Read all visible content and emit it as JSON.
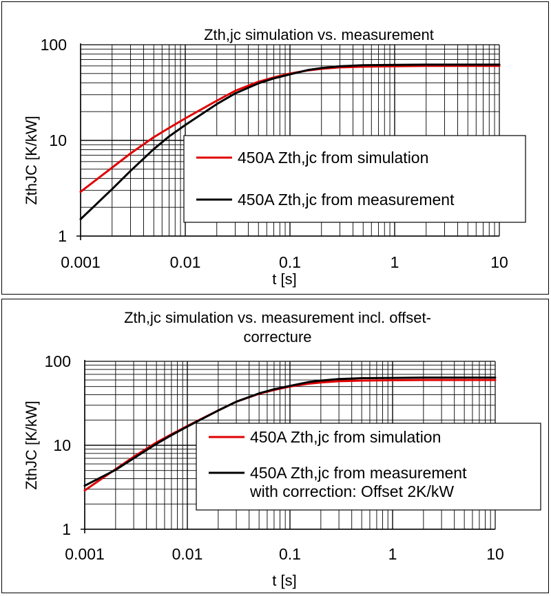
{
  "chart_data": [
    {
      "type": "line",
      "title_lines": [
        "Zth,jc  simulation vs. measurement"
      ],
      "xlabel": "t [s]",
      "ylabel": "ZthJC [K/kW]",
      "xscale": "log",
      "yscale": "log",
      "xlim": [
        0.001,
        10
      ],
      "ylim": [
        1,
        100
      ],
      "xticks": [
        "0.001",
        "0.01",
        "0.1",
        "1",
        "10"
      ],
      "yticks": [
        "1",
        "10",
        "100"
      ],
      "grid": true,
      "legend": "center-right",
      "series": [
        {
          "name": "450A Zth,jc from simulation",
          "color": "#e00000",
          "x": [
            0.001,
            0.002,
            0.003,
            0.005,
            0.007,
            0.01,
            0.02,
            0.03,
            0.05,
            0.07,
            0.1,
            0.15,
            0.2,
            0.3,
            0.5,
            1,
            2,
            5,
            10
          ],
          "y": [
            2.9,
            5.2,
            7.3,
            10.8,
            13.5,
            17,
            26,
            33,
            41,
            45.5,
            50,
            54,
            56,
            58,
            59,
            59.5,
            60,
            60,
            60
          ]
        },
        {
          "name": "450A Zth,jc from measurement",
          "color": "#000000",
          "x": [
            0.001,
            0.002,
            0.003,
            0.005,
            0.007,
            0.01,
            0.02,
            0.03,
            0.05,
            0.07,
            0.1,
            0.15,
            0.2,
            0.3,
            0.5,
            1,
            2,
            5,
            10
          ],
          "y": [
            1.5,
            3.1,
            4.8,
            8.1,
            11,
            14.5,
            24,
            31,
            39.5,
            44.5,
            49,
            54.5,
            57,
            59.5,
            61,
            61.5,
            62,
            62,
            62
          ]
        }
      ]
    },
    {
      "type": "line",
      "title_lines": [
        "Zth,jc  simulation vs. measurement incl. offset-",
        "correcture"
      ],
      "xlabel": "t [s]",
      "ylabel": "ZthJC [K/kW]",
      "xscale": "log",
      "yscale": "log",
      "xlim": [
        0.001,
        10
      ],
      "ylim": [
        1,
        100
      ],
      "xticks": [
        "0.001",
        "0.01",
        "0.1",
        "1",
        "10"
      ],
      "yticks": [
        "1",
        "10",
        "100"
      ],
      "grid": true,
      "legend": "center-right",
      "series": [
        {
          "name": "450A Zth,jc from simulation",
          "color": "#e00000",
          "x": [
            0.001,
            0.002,
            0.003,
            0.005,
            0.007,
            0.01,
            0.02,
            0.03,
            0.05,
            0.07,
            0.1,
            0.15,
            0.2,
            0.3,
            0.5,
            1,
            2,
            5,
            10
          ],
          "y": [
            2.9,
            5.2,
            7.3,
            10.8,
            13.5,
            17,
            26,
            33,
            41,
            45.5,
            50,
            54,
            56,
            58,
            59,
            59.5,
            60,
            60,
            60
          ]
        },
        {
          "name_lines": [
            "450A Zth,jc from measurement",
            "with correction: Offset 2K/kW"
          ],
          "color": "#000000",
          "x": [
            0.001,
            0.002,
            0.003,
            0.005,
            0.007,
            0.01,
            0.02,
            0.03,
            0.05,
            0.07,
            0.1,
            0.15,
            0.2,
            0.3,
            0.5,
            1,
            2,
            5,
            10
          ],
          "y": [
            3.3,
            5.1,
            7.0,
            10.4,
            13.2,
            16.7,
            26,
            33,
            41.5,
            46.5,
            51,
            56.5,
            59,
            61.5,
            63,
            63.5,
            64,
            64,
            64
          ]
        }
      ]
    }
  ]
}
